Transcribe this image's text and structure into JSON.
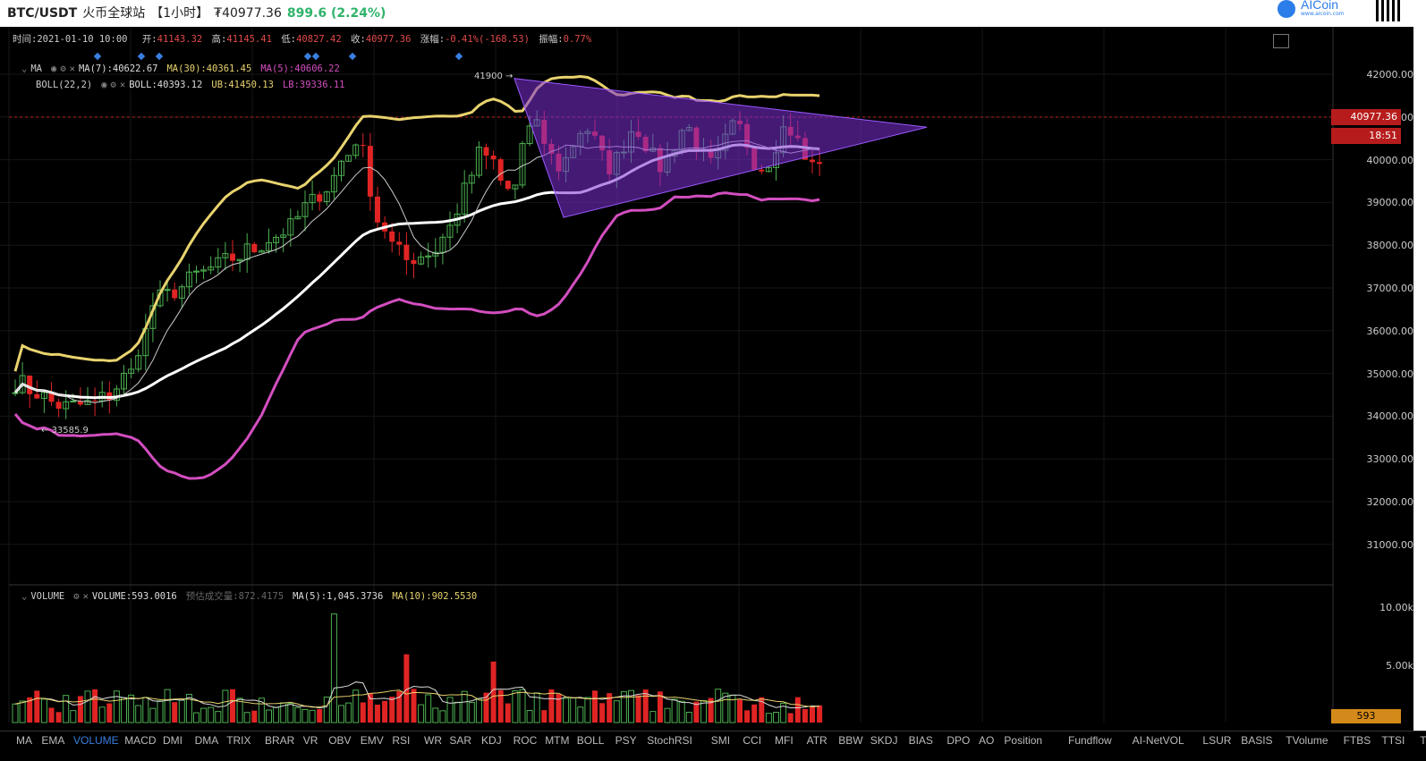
{
  "header": {
    "symbol": "BTC/USDT",
    "exchange": "火币全球站",
    "interval": "【1小时】",
    "price": "₮40977.36",
    "change": "899.6 (2.24%)"
  },
  "logo": {
    "name": "AICoin",
    "url": "www.aicoin.com"
  },
  "ohlc": {
    "time_label": "时间:",
    "time": "2021-01-10 10:00",
    "open_label": "开:",
    "open": "41143.32",
    "high_label": "高:",
    "high": "41145.41",
    "low_label": "低:",
    "low": "40827.42",
    "close_label": "收:",
    "close": "40977.36",
    "chg_label": "涨幅:",
    "chg": "-0.41%(-168.53)",
    "amp_label": "振幅:",
    "amp": "0.77%"
  },
  "ma_row": {
    "name": "MA",
    "ma7": "MA(7):40622.67",
    "ma30": "MA(30):40361.45",
    "ma5": "MA(5):40606.22"
  },
  "boll_row": {
    "name": "BOLL(22,2)",
    "boll": "BOLL:40393.12",
    "ub": "UB:41450.13",
    "lb": "LB:39336.11"
  },
  "vol_row": {
    "name": "VOLUME",
    "volume": "VOLUME:593.0016",
    "est": "预估成交量:872.4175",
    "ma5": "MA(5):1,045.3736",
    "ma10": "MA(10):902.5530"
  },
  "price_axis": [
    "42000.00",
    "41000.00",
    "40000.00",
    "39000.00",
    "38000.00",
    "37000.00",
    "36000.00",
    "35000.00",
    "34000.00",
    "33000.00",
    "32000.00",
    "31000.00"
  ],
  "last_price_tag": "40977.36",
  "countdown": "18:51",
  "volume_axis": [
    "10.00k",
    "5.00k"
  ],
  "volume_tag": "593",
  "annotations": {
    "high": "41900",
    "low": "33585.9"
  },
  "indicators": [
    "MA",
    "EMA",
    "VOLUME",
    "MACD",
    "DMI",
    "DMA",
    "TRIX",
    "BRAR",
    "VR",
    "OBV",
    "EMV",
    "RSI",
    "WR",
    "SAR",
    "KDJ",
    "ROC",
    "MTM",
    "BOLL",
    "PSY",
    "StochRSI",
    "SMI",
    "CCI",
    "MFI",
    "ATR",
    "BBW",
    "SKDJ",
    "BIAS",
    "DPO",
    "AO",
    "Position",
    "Fundflow",
    "AI-NetVOL",
    "LSUR",
    "BASIS",
    "TVolume",
    "FTBS",
    "TTSI",
    "TTMU"
  ],
  "active_indicator": "VOLUME",
  "colors": {
    "up": "#4caf50",
    "down": "#e02424",
    "boll_ub": "#e8d36e",
    "boll_lb": "#d34ec0",
    "ma30": "#ffffff",
    "triangle": "#7b2fd6"
  }
}
